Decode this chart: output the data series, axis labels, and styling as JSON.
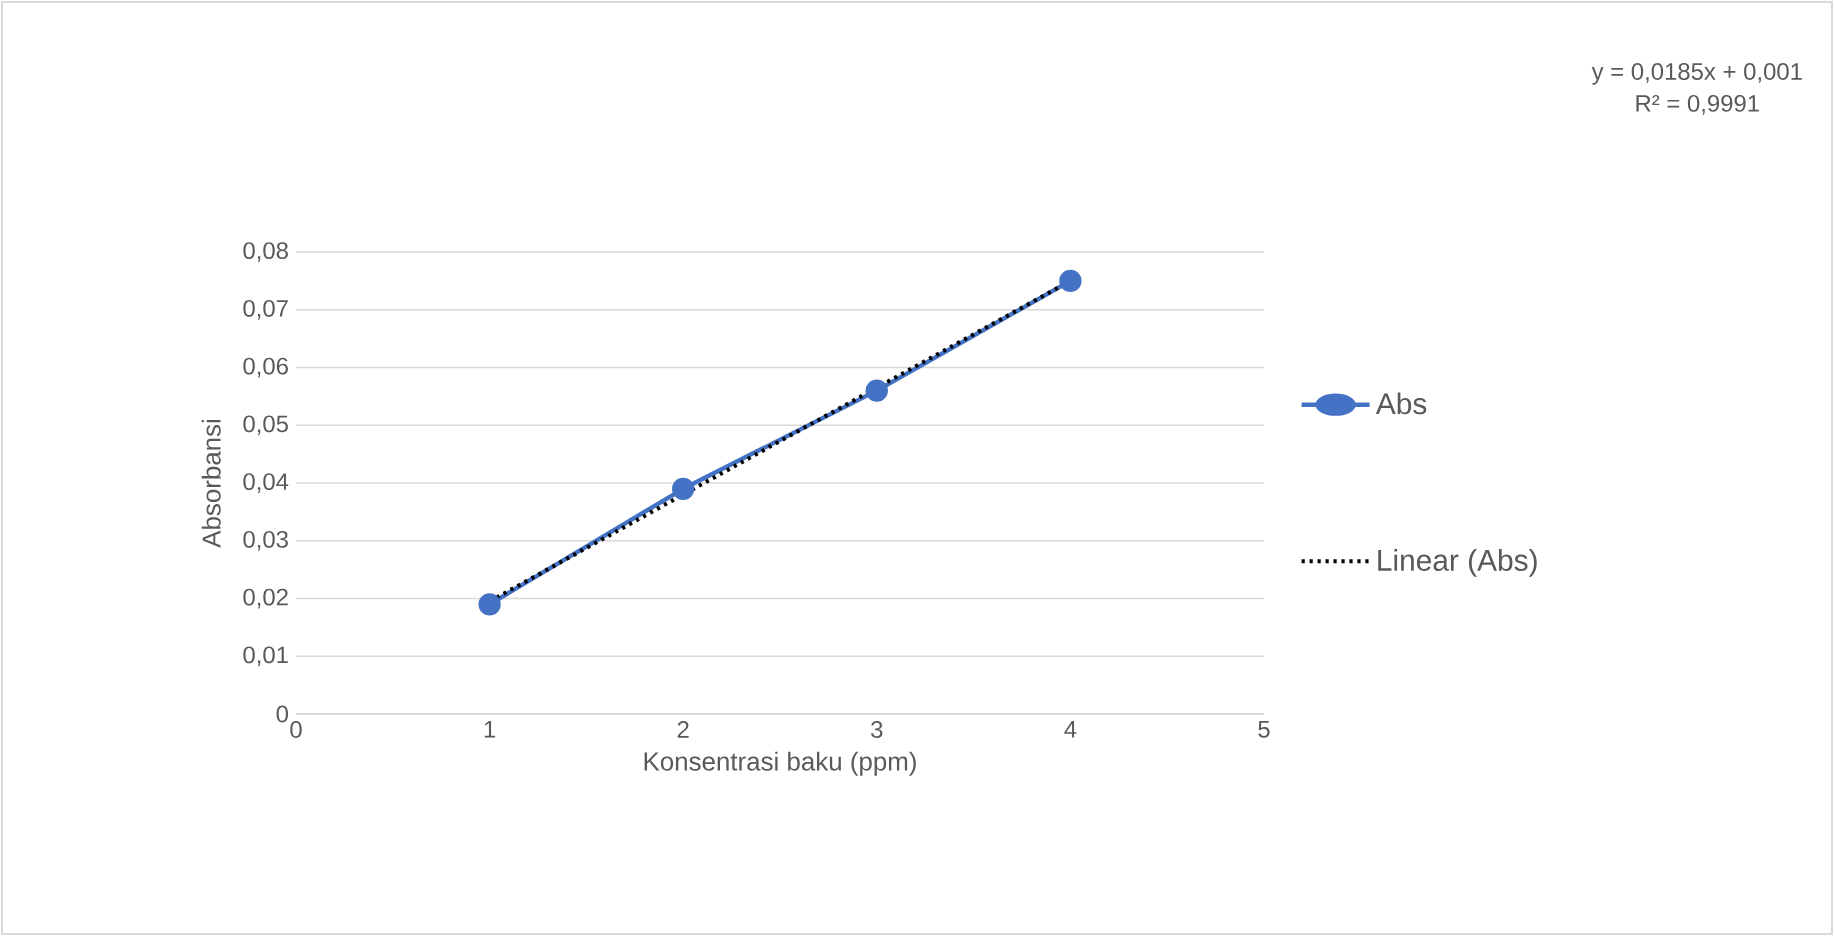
{
  "chart_data": {
    "type": "line",
    "xlabel": "Konsentrasi baku (ppm)",
    "ylabel": "Absorbansi",
    "series": [
      {
        "name": "Abs",
        "color": "#4472c4",
        "x": [
          1,
          2,
          3,
          4
        ],
        "values": [
          0.019,
          0.039,
          0.056,
          0.075
        ],
        "marker": "circle",
        "line_style": "solid"
      },
      {
        "name": "Linear (Abs)",
        "color": "#000000",
        "x": [
          1,
          4
        ],
        "values": [
          0.0195,
          0.075
        ],
        "line_style": "dotted"
      }
    ],
    "xlim": [
      0,
      5
    ],
    "xticks": [
      0,
      1,
      2,
      3,
      4,
      5
    ],
    "ylim": [
      0,
      0.08
    ],
    "yticks": [
      0,
      {
        "value": 0.01,
        "label": "0,01"
      },
      {
        "value": 0.02,
        "label": "0,02"
      },
      {
        "value": 0.03,
        "label": "0,03"
      },
      {
        "value": 0.04,
        "label": "0,04"
      },
      {
        "value": 0.05,
        "label": "0,05"
      },
      {
        "value": 0.06,
        "label": "0,06"
      },
      {
        "value": 0.07,
        "label": "0,07"
      },
      {
        "value": 0.08,
        "label": "0,08"
      }
    ],
    "grid": "y",
    "legend": "right",
    "annotations": [
      "y = 0,0185x + 0,001",
      "R² = 0,9991"
    ]
  }
}
